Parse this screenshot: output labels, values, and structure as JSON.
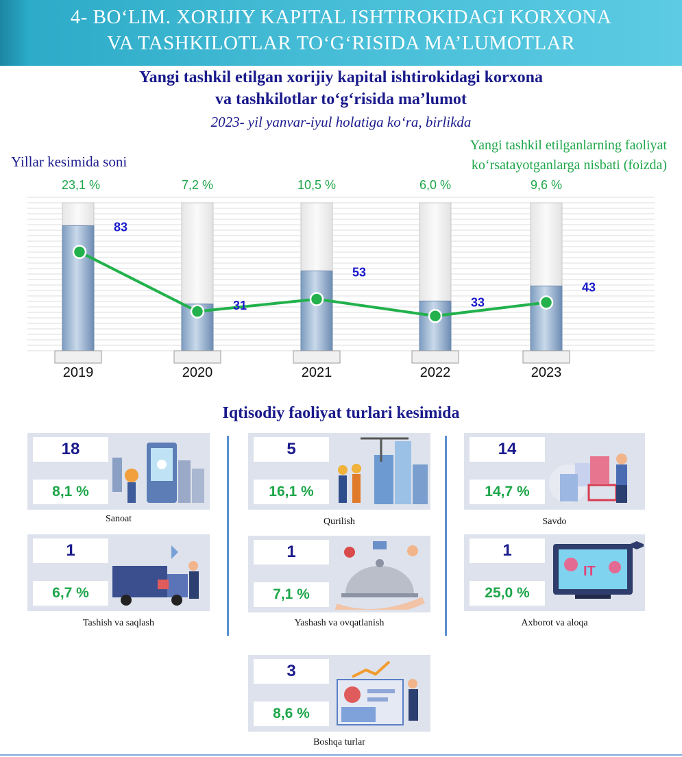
{
  "banner": {
    "line1": "4- BO‘LIM. XORIJIY KAPITAL ISHTIROKIDAGI KORXONA",
    "line2": "VA TASHKILOTLAR TO‘G‘RISIDA MA’LUMOTLAR"
  },
  "heading": {
    "line1": "Yangi tashkil etilgan xorijiy kapital ishtirokidagi korxona",
    "line2": "va tashkilotlar to‘g‘risida ma’lumot",
    "period": "2023- yil yanvar-iyul holatiga ko‘ra, birlikda"
  },
  "left_label": "Yillar kesimida soni",
  "right_label": {
    "line1": "Yangi tashkil etilganlarning faoliyat",
    "line2": "ko‘rsatayotganlarga nisbati (foizda)"
  },
  "chart_data": {
    "type": "bar",
    "categories": [
      "2019",
      "2020",
      "2021",
      "2022",
      "2023"
    ],
    "series": [
      {
        "values": [
          83,
          31,
          53,
          33,
          43
        ]
      },
      {
        "values": [
          23.1,
          7.2,
          10.5,
          6.0,
          9.6
        ]
      }
    ],
    "value_labels": [
      "83",
      "31",
      "53",
      "33",
      "43"
    ],
    "percent_labels": [
      "23,1 %",
      "7,2 %",
      "10,5 %",
      "6,0 %",
      "9,6 %"
    ],
    "ylim": [
      0,
      100
    ],
    "percent_ylim": [
      0,
      30
    ],
    "grid": true,
    "colors": {
      "bar": "#9ab6d4",
      "line": "#22b14c",
      "value_text": "#1a1acc",
      "percent_text": "#1ea64a"
    }
  },
  "section_title": "Iqtisodiy faoliyat turlari kesimida",
  "categories": [
    {
      "count": "18",
      "percent": "8,1 %",
      "name": "Sanoat",
      "icon": "factory-icon"
    },
    {
      "count": "5",
      "percent": "16,1 %",
      "name": "Qurilish",
      "icon": "construction-icon"
    },
    {
      "count": "14",
      "percent": "14,7 %",
      "name": "Savdo",
      "icon": "shopping-icon"
    },
    {
      "count": "1",
      "percent": "6,7 %",
      "name": "Tashish va saqlash",
      "icon": "truck-icon"
    },
    {
      "count": "1",
      "percent": "7,1 %",
      "name": "Yashash va ovqatlanish",
      "icon": "cloche-icon"
    },
    {
      "count": "1",
      "percent": "25,0 %",
      "name": "Axborot va aloqa",
      "icon": "it-icon"
    },
    {
      "count": "3",
      "percent": "8,6 %",
      "name": "Boshqa turlar",
      "icon": "analytics-icon"
    }
  ]
}
